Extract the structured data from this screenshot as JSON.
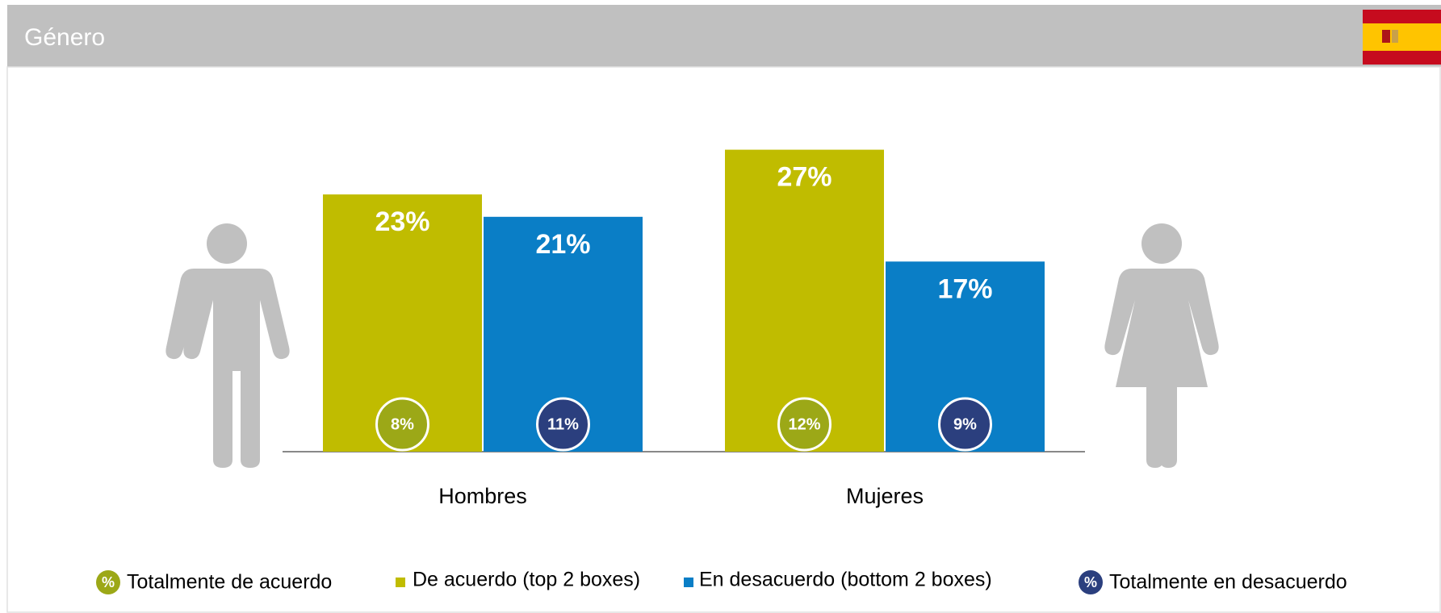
{
  "header": {
    "title": "Género"
  },
  "chart_data": {
    "type": "bar",
    "categories": [
      "Hombres",
      "Mujeres"
    ],
    "ylim": [
      0,
      30
    ],
    "series": [
      {
        "name": "De acuerdo (top 2 boxes)",
        "color": "#c0bc00",
        "values": [
          23,
          27
        ],
        "value_labels": [
          "23%",
          "27%"
        ]
      },
      {
        "name": "En desacuerdo (bottom 2 boxes)",
        "color": "#0a7ec6",
        "values": [
          21,
          17
        ],
        "value_labels": [
          "21%",
          "17%"
        ]
      }
    ],
    "markers": [
      {
        "name": "Totalmente de acuerdo",
        "color": "#9ca817",
        "symbol": "%",
        "values": [
          8,
          12
        ],
        "value_labels": [
          "8%",
          "12%"
        ]
      },
      {
        "name": "Totalmente en desacuerdo",
        "color": "#2b3f7e",
        "symbol": "%",
        "values": [
          11,
          9
        ],
        "value_labels": [
          "11%",
          "9%"
        ]
      }
    ]
  }
}
